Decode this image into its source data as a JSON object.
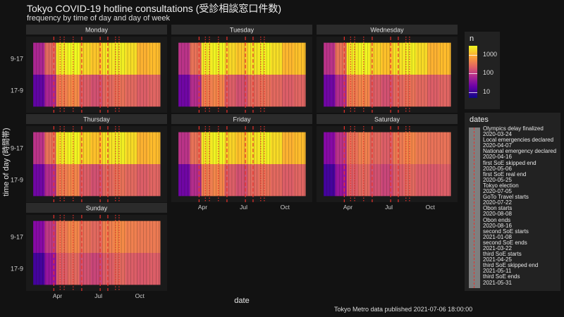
{
  "title": "Tokyo COVID-19 hotline consultations (受診相談窓口件数)",
  "subtitle": "frequency by time of day and day of week",
  "caption": "Tokyo Metro data published 2021-07-06 18:00:00",
  "colors": {
    "background": "#121212",
    "panel": "#1a1a1a",
    "strip": "#2b2b2b",
    "event_line": "#e8312b"
  },
  "chart_data": {
    "type": "heatmap",
    "xlabel": "date",
    "ylabel": "time of day (時間帯)",
    "x_range": [
      "2020-02-07",
      "2020-11-15"
    ],
    "x_ticks": [
      "Apr",
      "Jul",
      "Oct"
    ],
    "x_tick_dates": [
      "2020-04-01",
      "2020-07-01",
      "2020-10-01"
    ],
    "y_categories": [
      "9-17",
      "17-9"
    ],
    "facets": [
      "Monday",
      "Tuesday",
      "Wednesday",
      "Thursday",
      "Friday",
      "Saturday",
      "Sunday"
    ],
    "fill_scale": {
      "name": "n",
      "trans": "log10",
      "limits": [
        5,
        3000
      ],
      "breaks": [
        10,
        100,
        1000
      ],
      "labels": [
        "10",
        "100",
        "1000"
      ],
      "palette": "plasma"
    },
    "approx_levels": {
      "Monday": {
        "9-17": [
          60,
          250,
          2500,
          3000,
          1800,
          1400,
          2200,
          2600,
          2000,
          1000,
          1200
        ],
        "17-9": [
          15,
          60,
          400,
          500,
          200,
          150,
          250,
          300,
          250,
          200,
          230
        ]
      },
      "Tuesday": {
        "9-17": [
          80,
          300,
          2500,
          2800,
          1800,
          1400,
          2200,
          2700,
          2000,
          1100,
          1300
        ],
        "17-9": [
          20,
          70,
          400,
          450,
          200,
          150,
          260,
          300,
          250,
          200,
          230
        ]
      },
      "Wednesday": {
        "9-17": [
          80,
          300,
          2400,
          2800,
          1700,
          1300,
          2100,
          2600,
          1900,
          1000,
          1200
        ],
        "17-9": [
          20,
          70,
          380,
          450,
          200,
          150,
          250,
          300,
          250,
          200,
          230
        ]
      },
      "Thursday": {
        "9-17": [
          80,
          300,
          2400,
          2800,
          1700,
          1300,
          2100,
          2600,
          1900,
          1000,
          1200
        ],
        "17-9": [
          20,
          70,
          380,
          450,
          200,
          150,
          250,
          300,
          250,
          200,
          230
        ]
      },
      "Friday": {
        "9-17": [
          80,
          300,
          2400,
          2800,
          1700,
          1300,
          2100,
          2600,
          1900,
          1000,
          1200
        ],
        "17-9": [
          20,
          70,
          380,
          450,
          200,
          150,
          250,
          300,
          250,
          200,
          230
        ]
      },
      "Saturday": {
        "9-17": [
          30,
          80,
          300,
          400,
          250,
          200,
          350,
          450,
          350,
          300,
          300
        ],
        "17-9": [
          10,
          40,
          200,
          250,
          150,
          120,
          200,
          250,
          200,
          180,
          200
        ]
      },
      "Sunday": {
        "9-17": [
          30,
          90,
          350,
          450,
          300,
          250,
          400,
          500,
          400,
          350,
          350
        ],
        "17-9": [
          10,
          40,
          200,
          250,
          150,
          120,
          200,
          250,
          200,
          180,
          200
        ]
      }
    },
    "events": [
      {
        "label": "Olympics delay finalized",
        "date": "2020-03-24",
        "style": "dashed"
      },
      {
        "label": "Local emergencies declared",
        "date": "2020-04-07",
        "style": "dotted"
      },
      {
        "label": "National emergency declared",
        "date": "2020-04-16",
        "style": "dotted"
      },
      {
        "label": "first SoE skipped end",
        "date": "2020-05-06",
        "style": "dotted"
      },
      {
        "label": "first SoE real end",
        "date": "2020-05-25",
        "style": "dashed"
      },
      {
        "label": "Tokyo election",
        "date": "2020-07-05",
        "style": "dashed"
      },
      {
        "label": "GoTo Travel starts",
        "date": "2020-07-22",
        "style": "dashed"
      },
      {
        "label": "Obon starts",
        "date": "2020-08-08",
        "style": "dotted"
      },
      {
        "label": "Obon ends",
        "date": "2020-08-16",
        "style": "dotted"
      },
      {
        "label": "second SoE starts",
        "date": "2021-01-08",
        "style": "dashed"
      },
      {
        "label": "second SoE ends",
        "date": "2021-03-22",
        "style": "dashed"
      },
      {
        "label": "third SoE starts",
        "date": "2021-04-25",
        "style": "dashed"
      },
      {
        "label": "third SoE skipped end",
        "date": "2021-05-11",
        "style": "dashed"
      },
      {
        "label": "third SoE ends",
        "date": "2021-05-31",
        "style": "dashed"
      }
    ]
  }
}
